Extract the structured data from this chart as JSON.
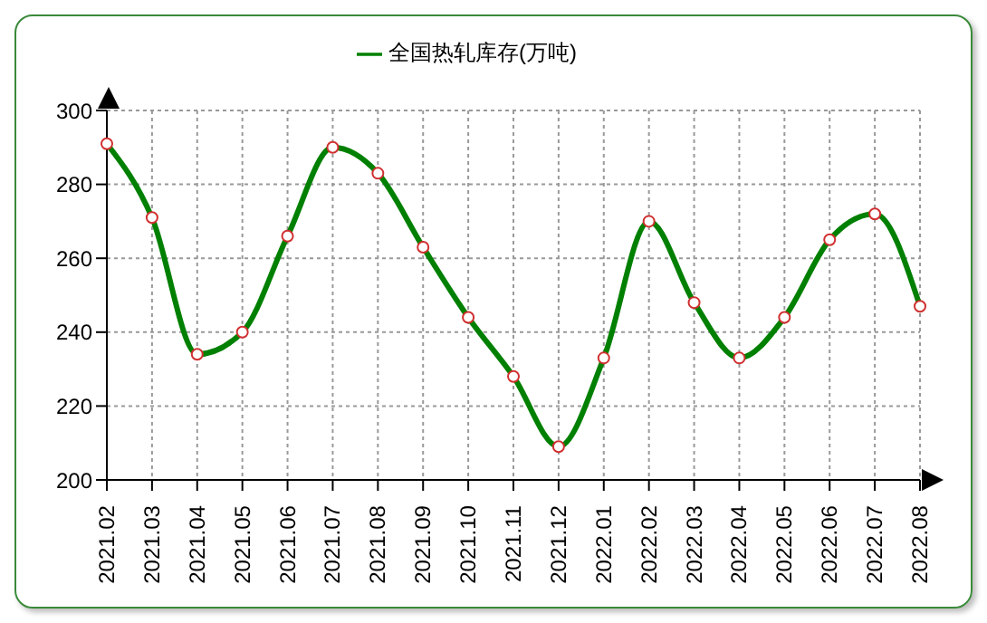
{
  "chart_data": {
    "type": "line",
    "categories": [
      "2021.02",
      "2021.03",
      "2021.04",
      "2021.05",
      "2021.06",
      "2021.07",
      "2021.08",
      "2021.09",
      "2021.10",
      "2021.11",
      "2021.12",
      "2022.01",
      "2022.02",
      "2022.03",
      "2022.04",
      "2022.05",
      "2022.06",
      "2022.07",
      "2022.08"
    ],
    "series": [
      {
        "name": "全国热轧库存(万吨)",
        "color": "#008000",
        "values": [
          291,
          271,
          234,
          240,
          266,
          290,
          283,
          263,
          244,
          228,
          209,
          233,
          270,
          248,
          233,
          244,
          265,
          272,
          247
        ]
      }
    ],
    "ylim": [
      200,
      300
    ],
    "yticks": [
      200,
      220,
      240,
      260,
      280,
      300
    ],
    "grid": true,
    "legend": "top",
    "marker": "circle",
    "line_style": "solid"
  }
}
